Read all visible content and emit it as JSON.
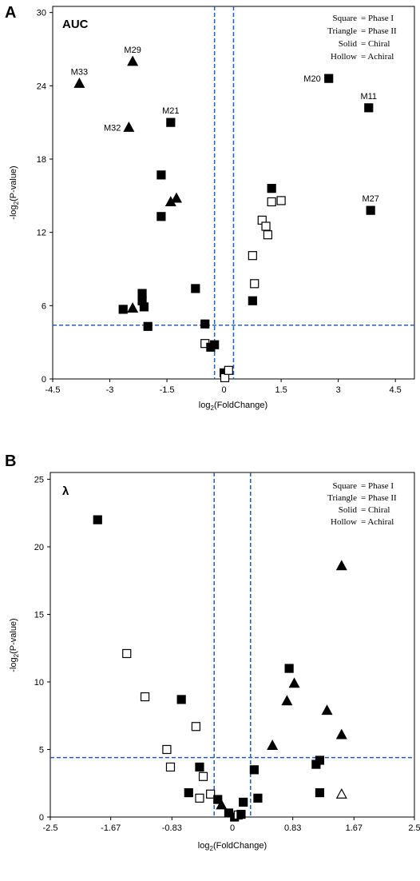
{
  "chart_data": [
    {
      "panel_letter": "A",
      "type": "scatter",
      "title": "AUC",
      "xlabel_main": "log",
      "xlabel_sub": "2",
      "xlabel_rest": "(FoldChange)",
      "ylabel_main": "-log",
      "ylabel_sub": "2",
      "ylabel_rest": "(P-value)",
      "xlim": [
        -4.5,
        5.0
      ],
      "ylim": [
        0,
        30.5
      ],
      "xticks": [
        -4.5,
        -3,
        -1.5,
        0,
        1.5,
        3,
        4.5
      ],
      "xtick_labels": [
        "-4.5",
        "-3",
        "-1.5",
        "0",
        "1.5",
        "3",
        "4.5"
      ],
      "yticks": [
        0,
        6,
        12,
        18,
        24,
        30
      ],
      "ytick_labels": [
        "0",
        "6",
        "12",
        "18",
        "24",
        "30"
      ],
      "vlines": [
        -0.25,
        0.25
      ],
      "hline": 4.4,
      "grid": false,
      "legend_position": "top-right",
      "legend": [
        {
          "key": "Square",
          "value": "Phase I"
        },
        {
          "key": "Triangle",
          "value": "Phase II"
        },
        {
          "key": "Solid",
          "value": "Chiral"
        },
        {
          "key": "Hollow",
          "value": "Achiral"
        }
      ],
      "points": [
        {
          "x": -3.8,
          "y": 24.2,
          "shape": "triangle",
          "fill": "solid",
          "label": "M33"
        },
        {
          "x": -2.4,
          "y": 26.0,
          "shape": "triangle",
          "fill": "solid",
          "label": "M29"
        },
        {
          "x": -2.5,
          "y": 20.6,
          "shape": "triangle",
          "fill": "solid",
          "label": "M32"
        },
        {
          "x": -1.4,
          "y": 21.0,
          "shape": "square",
          "fill": "solid",
          "label": "M21"
        },
        {
          "x": 2.75,
          "y": 24.6,
          "shape": "square",
          "fill": "solid",
          "label": "M20"
        },
        {
          "x": 3.8,
          "y": 22.2,
          "shape": "square",
          "fill": "solid",
          "label": "M11"
        },
        {
          "x": 3.85,
          "y": 13.8,
          "shape": "square",
          "fill": "solid",
          "label": "M27"
        },
        {
          "x": -1.65,
          "y": 16.7,
          "shape": "square",
          "fill": "solid"
        },
        {
          "x": -1.25,
          "y": 14.8,
          "shape": "triangle",
          "fill": "solid"
        },
        {
          "x": -1.4,
          "y": 14.5,
          "shape": "triangle",
          "fill": "solid"
        },
        {
          "x": -1.65,
          "y": 13.3,
          "shape": "square",
          "fill": "solid"
        },
        {
          "x": -0.75,
          "y": 7.4,
          "shape": "square",
          "fill": "solid"
        },
        {
          "x": -2.15,
          "y": 7.0,
          "shape": "square",
          "fill": "solid"
        },
        {
          "x": -2.15,
          "y": 6.4,
          "shape": "square",
          "fill": "solid"
        },
        {
          "x": -2.1,
          "y": 5.9,
          "shape": "square",
          "fill": "solid"
        },
        {
          "x": -2.65,
          "y": 5.7,
          "shape": "square",
          "fill": "solid"
        },
        {
          "x": -2.4,
          "y": 5.8,
          "shape": "triangle",
          "fill": "solid"
        },
        {
          "x": -2.0,
          "y": 4.3,
          "shape": "square",
          "fill": "solid"
        },
        {
          "x": -0.5,
          "y": 4.5,
          "shape": "square",
          "fill": "solid"
        },
        {
          "x": -0.5,
          "y": 2.9,
          "shape": "square",
          "fill": "hollow"
        },
        {
          "x": -0.35,
          "y": 2.6,
          "shape": "square",
          "fill": "solid"
        },
        {
          "x": -0.25,
          "y": 2.8,
          "shape": "square",
          "fill": "solid"
        },
        {
          "x": 0.0,
          "y": 0.5,
          "shape": "square",
          "fill": "solid"
        },
        {
          "x": 0.02,
          "y": 0.1,
          "shape": "square",
          "fill": "hollow"
        },
        {
          "x": 0.12,
          "y": 0.7,
          "shape": "square",
          "fill": "hollow"
        },
        {
          "x": 1.25,
          "y": 15.6,
          "shape": "square",
          "fill": "solid"
        },
        {
          "x": 1.25,
          "y": 14.5,
          "shape": "square",
          "fill": "hollow"
        },
        {
          "x": 1.5,
          "y": 14.6,
          "shape": "square",
          "fill": "hollow"
        },
        {
          "x": 1.0,
          "y": 13.0,
          "shape": "square",
          "fill": "hollow"
        },
        {
          "x": 1.1,
          "y": 12.5,
          "shape": "square",
          "fill": "hollow"
        },
        {
          "x": 1.15,
          "y": 11.8,
          "shape": "square",
          "fill": "hollow"
        },
        {
          "x": 0.75,
          "y": 10.1,
          "shape": "square",
          "fill": "hollow"
        },
        {
          "x": 0.8,
          "y": 7.8,
          "shape": "square",
          "fill": "hollow"
        },
        {
          "x": 0.75,
          "y": 6.4,
          "shape": "square",
          "fill": "solid"
        }
      ]
    },
    {
      "panel_letter": "B",
      "type": "scatter",
      "title": "λ",
      "xlabel_main": "log",
      "xlabel_sub": "2",
      "xlabel_rest": "(FoldChange)",
      "ylabel_main": "-log",
      "ylabel_sub": "2",
      "ylabel_rest": "(P-value)",
      "xlim": [
        -2.5,
        2.5
      ],
      "ylim": [
        0,
        25.5
      ],
      "xticks": [
        -2.5,
        -1.67,
        -0.83,
        0,
        0.83,
        1.67,
        2.5
      ],
      "xtick_labels": [
        "-2.5",
        "-1.67",
        "-0.83",
        "0",
        "0.83",
        "1.67",
        "2.5"
      ],
      "yticks": [
        0,
        5,
        10,
        15,
        20,
        25
      ],
      "ytick_labels": [
        "0",
        "5",
        "10",
        "15",
        "20",
        "25"
      ],
      "vlines": [
        -0.25,
        0.25
      ],
      "hline": 4.4,
      "grid": false,
      "legend_position": "top-right",
      "legend": [
        {
          "key": "Square",
          "value": "Phase I"
        },
        {
          "key": "Triangle",
          "value": "Phase II"
        },
        {
          "key": "Solid",
          "value": "Chiral"
        },
        {
          "key": "Hollow",
          "value": "Achiral"
        }
      ],
      "points": [
        {
          "x": -1.85,
          "y": 22.0,
          "shape": "square",
          "fill": "solid"
        },
        {
          "x": -1.45,
          "y": 12.1,
          "shape": "square",
          "fill": "hollow"
        },
        {
          "x": -1.2,
          "y": 8.9,
          "shape": "square",
          "fill": "hollow"
        },
        {
          "x": -0.7,
          "y": 8.7,
          "shape": "square",
          "fill": "solid"
        },
        {
          "x": -0.5,
          "y": 6.7,
          "shape": "square",
          "fill": "hollow"
        },
        {
          "x": -0.9,
          "y": 5.0,
          "shape": "square",
          "fill": "hollow"
        },
        {
          "x": -0.85,
          "y": 3.7,
          "shape": "square",
          "fill": "hollow"
        },
        {
          "x": -0.45,
          "y": 3.7,
          "shape": "square",
          "fill": "solid"
        },
        {
          "x": -0.4,
          "y": 3.0,
          "shape": "square",
          "fill": "hollow"
        },
        {
          "x": -0.6,
          "y": 1.8,
          "shape": "square",
          "fill": "solid"
        },
        {
          "x": -0.45,
          "y": 1.4,
          "shape": "square",
          "fill": "hollow"
        },
        {
          "x": -0.3,
          "y": 1.7,
          "shape": "square",
          "fill": "hollow"
        },
        {
          "x": -0.2,
          "y": 1.3,
          "shape": "square",
          "fill": "solid"
        },
        {
          "x": -0.15,
          "y": 0.9,
          "shape": "triangle",
          "fill": "solid"
        },
        {
          "x": -0.05,
          "y": 0.3,
          "shape": "square",
          "fill": "solid"
        },
        {
          "x": 0.03,
          "y": 0.0,
          "shape": "square",
          "fill": "solid"
        },
        {
          "x": 0.08,
          "y": 0.15,
          "shape": "square",
          "fill": "hollow"
        },
        {
          "x": 0.12,
          "y": 0.2,
          "shape": "square",
          "fill": "solid"
        },
        {
          "x": 0.15,
          "y": 1.1,
          "shape": "square",
          "fill": "solid"
        },
        {
          "x": 0.3,
          "y": 3.5,
          "shape": "square",
          "fill": "solid"
        },
        {
          "x": 0.35,
          "y": 1.4,
          "shape": "square",
          "fill": "solid"
        },
        {
          "x": 0.55,
          "y": 5.3,
          "shape": "triangle",
          "fill": "solid"
        },
        {
          "x": 0.78,
          "y": 11.0,
          "shape": "square",
          "fill": "solid"
        },
        {
          "x": 0.85,
          "y": 9.9,
          "shape": "triangle",
          "fill": "solid"
        },
        {
          "x": 0.75,
          "y": 8.6,
          "shape": "triangle",
          "fill": "solid"
        },
        {
          "x": 1.3,
          "y": 7.9,
          "shape": "triangle",
          "fill": "solid"
        },
        {
          "x": 1.5,
          "y": 6.1,
          "shape": "triangle",
          "fill": "solid"
        },
        {
          "x": 1.5,
          "y": 18.6,
          "shape": "triangle",
          "fill": "solid"
        },
        {
          "x": 1.15,
          "y": 3.9,
          "shape": "square",
          "fill": "solid"
        },
        {
          "x": 1.2,
          "y": 4.2,
          "shape": "square",
          "fill": "solid"
        },
        {
          "x": 1.2,
          "y": 1.8,
          "shape": "square",
          "fill": "solid"
        },
        {
          "x": 1.5,
          "y": 1.7,
          "shape": "triangle",
          "fill": "hollow"
        }
      ]
    }
  ]
}
